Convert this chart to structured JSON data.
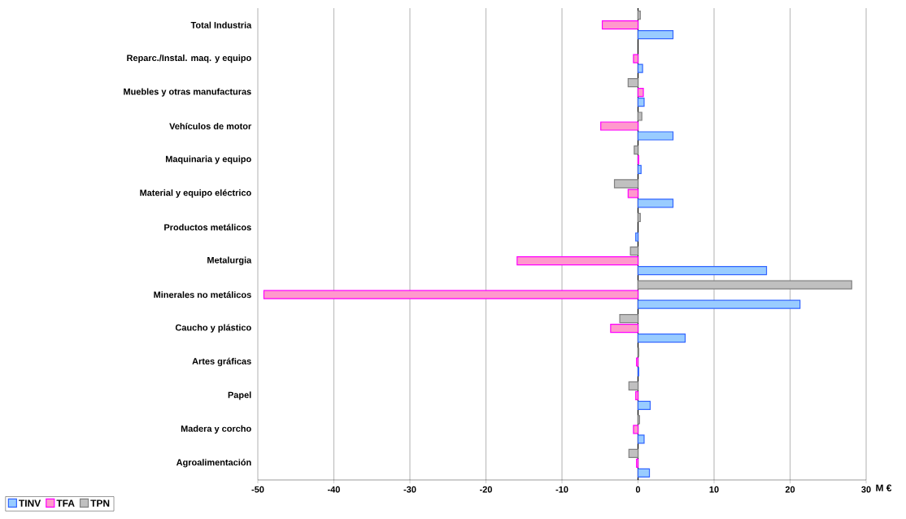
{
  "chart_data": {
    "type": "bar",
    "orientation": "horizontal",
    "categories": [
      "Total Industria",
      "Reparc./Instal. maq. y equipo",
      "Muebles y otras manufacturas",
      "Vehículos de motor",
      "Maquinaria y equipo",
      "Material y equipo eléctrico",
      "Productos metálicos",
      "Metalurgia",
      "Minerales no metálicos",
      "Caucho y plástico",
      "Artes gráficas",
      "Papel",
      "Madera y corcho",
      "Agroalimentación"
    ],
    "series": [
      {
        "name": "TINV",
        "color": "#99ccff",
        "values": [
          4.6,
          0.6,
          0.8,
          4.6,
          0.4,
          4.6,
          -0.3,
          16.9,
          21.3,
          6.2,
          0.1,
          1.6,
          0.8,
          1.5
        ]
      },
      {
        "name": "TFA",
        "color": "#ff99cc",
        "values": [
          -4.7,
          -0.6,
          0.7,
          -4.9,
          0.1,
          -1.3,
          0.0,
          -15.9,
          -49.2,
          -3.6,
          -0.2,
          -0.3,
          -0.6,
          -0.2
        ]
      },
      {
        "name": "TPN",
        "color": "#c0c0c0",
        "values": [
          0.3,
          0.0,
          -1.3,
          0.5,
          -0.5,
          -3.1,
          0.3,
          -1.0,
          28.1,
          -2.4,
          0.1,
          -1.2,
          0.2,
          -1.2
        ]
      }
    ],
    "xlim": [
      -50,
      30
    ],
    "xticks": [
      -50,
      -40,
      -30,
      -20,
      -10,
      0,
      10,
      20,
      30
    ],
    "grid": "x",
    "legend": "bottom left",
    "annotations": [
      "M €"
    ]
  }
}
